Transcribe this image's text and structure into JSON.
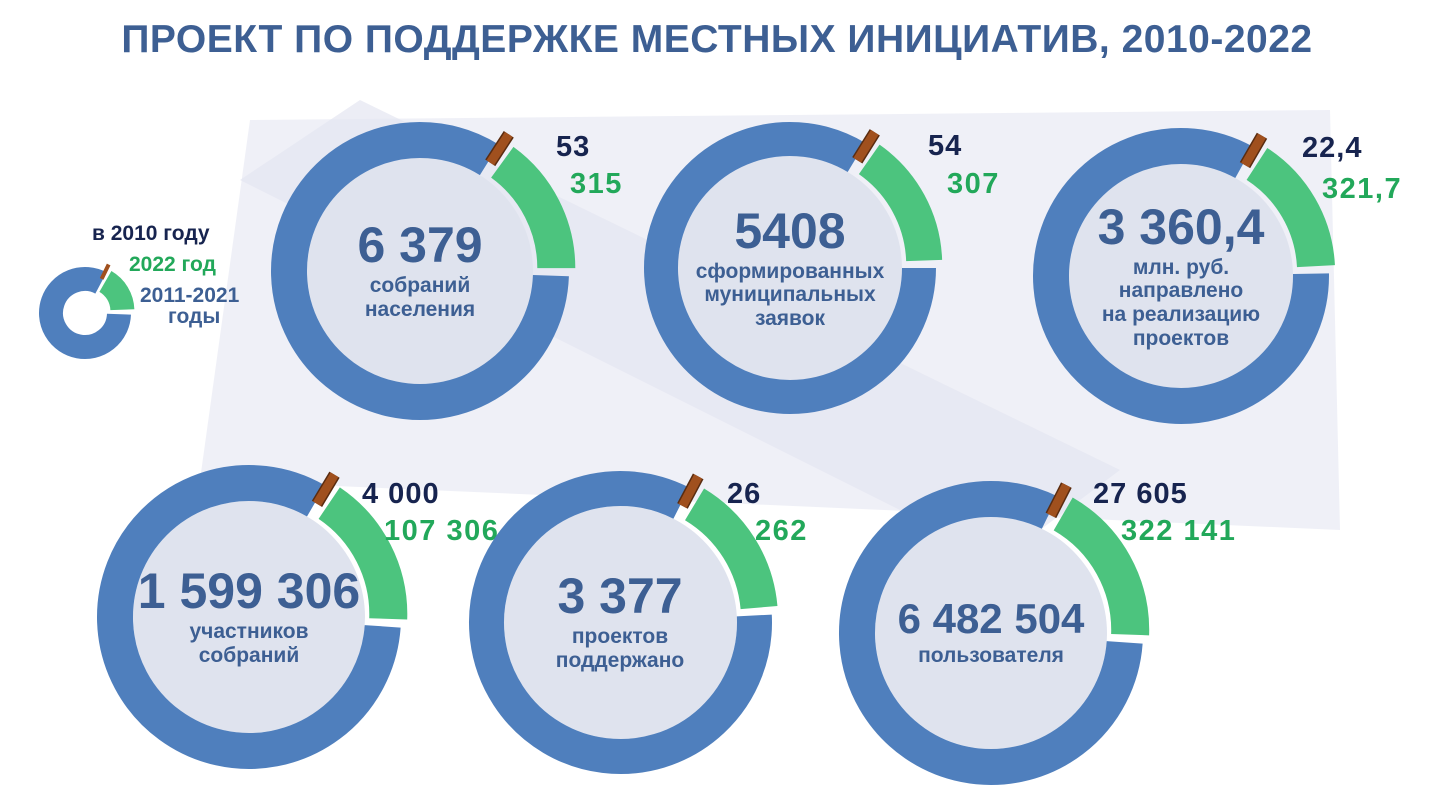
{
  "title": "ПРОЕКТ ПО ПОДДЕРЖКЕ МЕСТНЫХ ИНИЦИАТИВ, 2010-2022",
  "colors": {
    "title": "#3d5f93",
    "period_2011_2021": "#4f7fbd",
    "year_2022": "#4cc47e",
    "year_2010": "#a0501e",
    "center_fill": "#dfe3ee",
    "text_2010": "#17244f",
    "text_2022": "#22a85a"
  },
  "legend": {
    "label_2010": "в 2010 году",
    "label_2022": "2022 год",
    "label_2011_2021_line1": "2011-2021",
    "label_2011_2021_line2": "годы"
  },
  "chart_data": [
    {
      "type": "pie",
      "subtype": "donut",
      "total": "6 379",
      "label_lines": [
        "собраний",
        "населения"
      ],
      "series": [
        {
          "name": "в 2010 году",
          "value": "53"
        },
        {
          "name": "2022 год",
          "value": "315"
        }
      ]
    },
    {
      "type": "pie",
      "subtype": "donut",
      "total": "5408",
      "label_lines": [
        "сформированных",
        "муниципальных",
        "заявок"
      ],
      "series": [
        {
          "name": "в 2010 году",
          "value": "54"
        },
        {
          "name": "2022 год",
          "value": "307"
        }
      ]
    },
    {
      "type": "pie",
      "subtype": "donut",
      "total": "3 360,4",
      "label_lines": [
        "млн. руб.",
        "направлено",
        "на реализацию",
        "проектов"
      ],
      "series": [
        {
          "name": "в 2010 году",
          "value": "22,4"
        },
        {
          "name": "2022 год",
          "value": "321,7"
        }
      ]
    },
    {
      "type": "pie",
      "subtype": "donut",
      "total": "1 599 306",
      "label_lines": [
        "участников",
        "собраний"
      ],
      "series": [
        {
          "name": "в 2010 году",
          "value": "4 000"
        },
        {
          "name": "2022 год",
          "value": "107 306"
        }
      ]
    },
    {
      "type": "pie",
      "subtype": "donut",
      "total": "3 377",
      "label_lines": [
        "проектов",
        "поддержано"
      ],
      "series": [
        {
          "name": "в 2010 году",
          "value": "26"
        },
        {
          "name": "2022 год",
          "value": "262"
        }
      ]
    },
    {
      "type": "pie",
      "subtype": "donut",
      "total": "6 482 504",
      "label_lines": [
        "пользователя"
      ],
      "series": [
        {
          "name": "в 2010 году",
          "value": "27 605"
        },
        {
          "name": "2022 год",
          "value": "322 141"
        }
      ]
    }
  ]
}
